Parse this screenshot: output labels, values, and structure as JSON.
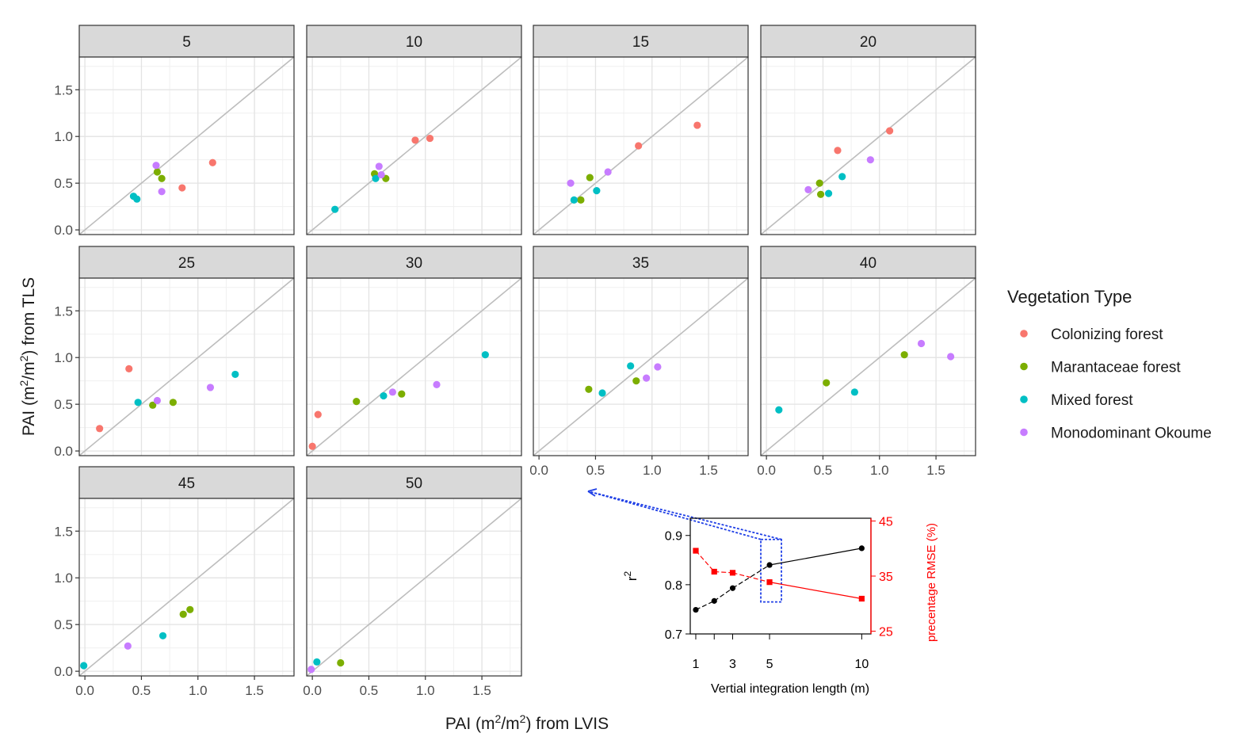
{
  "figure": {
    "y_axis_label": {
      "main": "PAI (m",
      "sup1": "2",
      "mid": "/m",
      "sup2": "2",
      "tail": ") from TLS"
    },
    "x_axis_label": {
      "main": "PAI (m",
      "sup1": "2",
      "mid": "/m",
      "sup2": "2",
      "tail": ") from LVIS"
    }
  },
  "legend": {
    "title": "Vegetation Type",
    "items": [
      {
        "label": "Colonizing forest",
        "color": "#F8766D"
      },
      {
        "label": "Marantaceae forest",
        "color": "#7CAE00"
      },
      {
        "label": "Mixed forest",
        "color": "#00BFC4"
      },
      {
        "label": "Monodominant Okoume",
        "color": "#C77CFF"
      }
    ]
  },
  "chart_data": [
    {
      "type": "scatter",
      "facet_variable": "vertical integration length",
      "facets": [
        "5",
        "10",
        "15",
        "20",
        "25",
        "30",
        "35",
        "40",
        "45",
        "50"
      ],
      "xlabel": "PAI (m2/m2) from LVIS",
      "ylabel": "PAI (m2/m2) from TLS",
      "xlim": [
        -0.05,
        1.85
      ],
      "ylim": [
        -0.05,
        1.85
      ],
      "x_ticks": [
        "0.0",
        "0.5",
        "1.0",
        "1.5"
      ],
      "y_ticks": [
        "0.0",
        "0.5",
        "1.0",
        "1.5"
      ],
      "reference_line": "1:1",
      "grid": true,
      "legend_position": "right",
      "series": [
        {
          "name": "Colonizing forest",
          "points": {
            "5": [
              [
                0.86,
                0.45
              ],
              [
                1.13,
                0.72
              ]
            ],
            "10": [
              [
                0.91,
                0.96
              ],
              [
                1.04,
                0.98
              ]
            ],
            "15": [
              [
                0.88,
                0.9
              ],
              [
                1.4,
                1.12
              ]
            ],
            "20": [
              [
                0.63,
                0.85
              ],
              [
                1.09,
                1.06
              ]
            ],
            "25": [
              [
                0.13,
                0.24
              ],
              [
                0.39,
                0.88
              ]
            ],
            "30": [
              [
                0.0,
                0.05
              ],
              [
                0.05,
                0.39
              ]
            ]
          }
        },
        {
          "name": "Marantaceae forest",
          "points": {
            "5": [
              [
                0.64,
                0.62
              ],
              [
                0.68,
                0.55
              ]
            ],
            "10": [
              [
                0.55,
                0.6
              ],
              [
                0.65,
                0.55
              ]
            ],
            "15": [
              [
                0.37,
                0.32
              ],
              [
                0.45,
                0.56
              ]
            ],
            "20": [
              [
                0.47,
                0.5
              ],
              [
                0.48,
                0.38
              ]
            ],
            "25": [
              [
                0.6,
                0.49
              ],
              [
                0.78,
                0.52
              ]
            ],
            "30": [
              [
                0.39,
                0.53
              ],
              [
                0.79,
                0.61
              ]
            ],
            "35": [
              [
                0.44,
                0.66
              ],
              [
                0.86,
                0.75
              ]
            ],
            "40": [
              [
                0.53,
                0.73
              ],
              [
                1.22,
                1.03
              ]
            ],
            "45": [
              [
                0.87,
                0.61
              ],
              [
                0.93,
                0.66
              ]
            ],
            "50": [
              [
                0.25,
                0.09
              ]
            ]
          }
        },
        {
          "name": "Mixed forest",
          "points": {
            "5": [
              [
                0.43,
                0.36
              ],
              [
                0.46,
                0.33
              ]
            ],
            "10": [
              [
                0.2,
                0.22
              ],
              [
                0.56,
                0.55
              ]
            ],
            "15": [
              [
                0.31,
                0.32
              ],
              [
                0.51,
                0.42
              ]
            ],
            "20": [
              [
                0.55,
                0.39
              ],
              [
                0.67,
                0.57
              ]
            ],
            "25": [
              [
                0.47,
                0.52
              ],
              [
                1.33,
                0.82
              ]
            ],
            "30": [
              [
                0.63,
                0.59
              ],
              [
                1.53,
                1.03
              ]
            ],
            "35": [
              [
                0.56,
                0.62
              ],
              [
                0.81,
                0.91
              ]
            ],
            "40": [
              [
                0.11,
                0.44
              ],
              [
                0.78,
                0.63
              ]
            ],
            "45": [
              [
                -0.01,
                0.06
              ],
              [
                0.69,
                0.38
              ]
            ],
            "50": [
              [
                0.04,
                0.1
              ]
            ]
          }
        },
        {
          "name": "Monodominant Okoume",
          "points": {
            "5": [
              [
                0.63,
                0.69
              ],
              [
                0.68,
                0.41
              ]
            ],
            "10": [
              [
                0.59,
                0.68
              ],
              [
                0.61,
                0.59
              ]
            ],
            "15": [
              [
                0.28,
                0.5
              ],
              [
                0.61,
                0.62
              ]
            ],
            "20": [
              [
                0.37,
                0.43
              ],
              [
                0.92,
                0.75
              ]
            ],
            "25": [
              [
                0.64,
                0.54
              ],
              [
                1.11,
                0.68
              ]
            ],
            "30": [
              [
                0.71,
                0.63
              ],
              [
                1.1,
                0.71
              ]
            ],
            "35": [
              [
                0.95,
                0.78
              ],
              [
                1.05,
                0.9
              ]
            ],
            "40": [
              [
                1.37,
                1.15
              ],
              [
                1.63,
                1.01
              ]
            ],
            "45": [
              [
                0.38,
                0.27
              ]
            ],
            "50": [
              [
                -0.01,
                0.02
              ]
            ]
          }
        }
      ]
    },
    {
      "type": "line",
      "xlabel": "Vertial integration length (m)",
      "ylabel": "r",
      "ylabel_sup": "2",
      "y2label": "precentage RMSE (%)",
      "x_ticks": [
        "1",
        "3",
        "5",
        "10"
      ],
      "xlim": [
        0.7,
        10.5
      ],
      "ylim": [
        0.7,
        0.935
      ],
      "y2lim": [
        24.5,
        45.5
      ],
      "y_ticks": [
        "0.7",
        "0.8",
        "0.9"
      ],
      "y2_ticks": [
        "25",
        "35",
        "45"
      ],
      "highlight_x": 5,
      "series": [
        {
          "axis": "left",
          "color": "#000000",
          "marker": "circle",
          "x": [
            1,
            2,
            3,
            5,
            10
          ],
          "values": [
            0.749,
            0.767,
            0.793,
            0.84,
            0.874
          ]
        },
        {
          "axis": "right",
          "color": "#FF0000",
          "marker": "square",
          "x": [
            1,
            2,
            3,
            5,
            10
          ],
          "values": [
            39.6,
            35.8,
            35.6,
            33.9,
            30.9
          ]
        }
      ]
    }
  ]
}
